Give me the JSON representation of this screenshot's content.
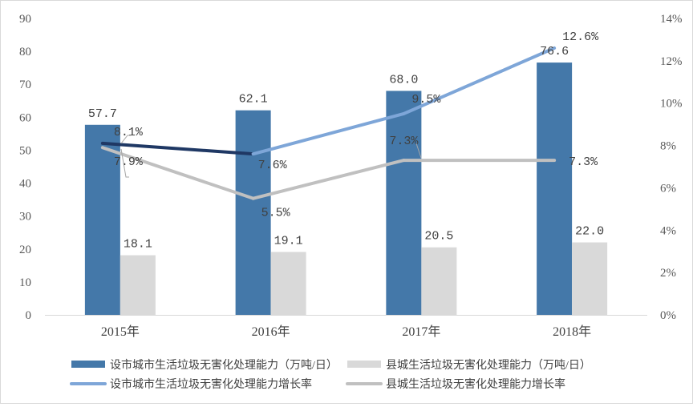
{
  "chart_data": {
    "type": "bar",
    "categories": [
      "2015年",
      "2016年",
      "2017年",
      "2018年"
    ],
    "left_axis": {
      "min": 0,
      "max": 90,
      "step": 10
    },
    "right_axis": {
      "min": 0,
      "max": 14,
      "step": 2,
      "unit": "%"
    },
    "bar_series": [
      {
        "name": "设市城市生活垃圾无害化处理能力（万吨/日）",
        "color": "#4478a9",
        "values": [
          57.7,
          62.1,
          68.0,
          76.6
        ]
      },
      {
        "name": "县城生活垃圾无害化处理能力（万吨/日）",
        "color": "#d9d9d9",
        "values": [
          18.1,
          19.1,
          20.5,
          22.0
        ]
      }
    ],
    "line_series": [
      {
        "name": "设市城市生活垃圾无害化处理能力增长率",
        "color": "#7ea6d8",
        "values": [
          8.1,
          7.6,
          9.5,
          12.6
        ]
      },
      {
        "name": "县城生活垃圾无害化处理能力增长率",
        "color": "#c0c0c0",
        "values": [
          7.9,
          5.5,
          7.3,
          7.3
        ]
      }
    ],
    "highlight_segment_color": "#1f3864",
    "grid": false,
    "legend_position": "bottom"
  }
}
